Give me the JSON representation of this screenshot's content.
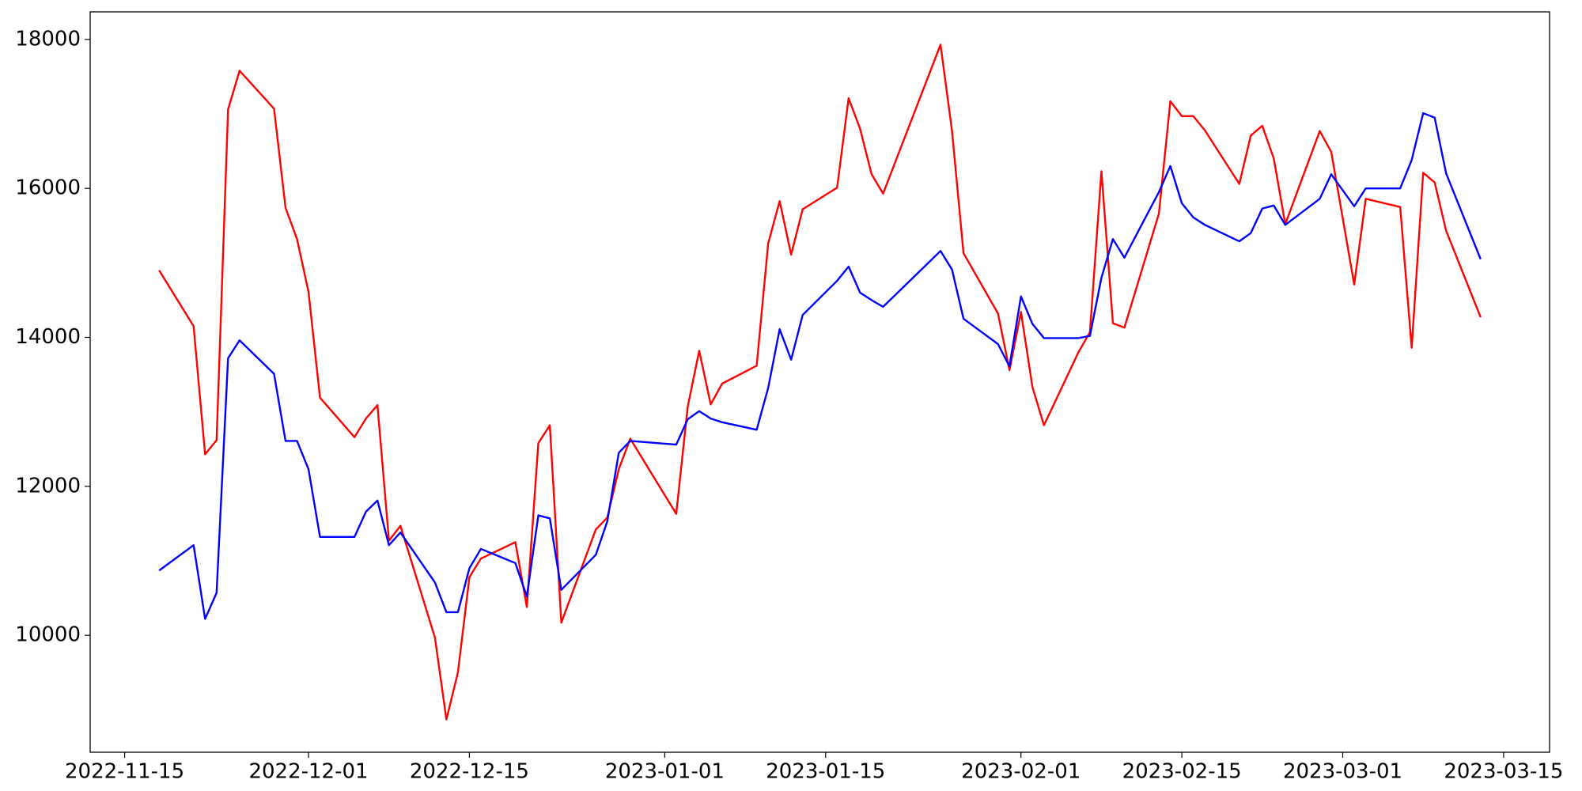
{
  "chart_data": {
    "type": "line",
    "x": [
      "2022-11-18",
      "2022-11-21",
      "2022-11-22",
      "2022-11-23",
      "2022-11-24",
      "2022-11-25",
      "2022-11-28",
      "2022-11-29",
      "2022-11-30",
      "2022-12-01",
      "2022-12-02",
      "2022-12-05",
      "2022-12-06",
      "2022-12-07",
      "2022-12-08",
      "2022-12-09",
      "2022-12-12",
      "2022-12-13",
      "2022-12-14",
      "2022-12-15",
      "2022-12-16",
      "2022-12-19",
      "2022-12-20",
      "2022-12-21",
      "2022-12-22",
      "2022-12-23",
      "2022-12-26",
      "2022-12-27",
      "2022-12-28",
      "2022-12-29",
      "2023-01-02",
      "2023-01-03",
      "2023-01-04",
      "2023-01-05",
      "2023-01-06",
      "2023-01-09",
      "2023-01-10",
      "2023-01-11",
      "2023-01-12",
      "2023-01-13",
      "2023-01-16",
      "2023-01-17",
      "2023-01-18",
      "2023-01-19",
      "2023-01-20",
      "2023-01-25",
      "2023-01-26",
      "2023-01-27",
      "2023-01-30",
      "2023-01-31",
      "2023-02-01",
      "2023-02-02",
      "2023-02-03",
      "2023-02-06",
      "2023-02-07",
      "2023-02-08",
      "2023-02-09",
      "2023-02-10",
      "2023-02-13",
      "2023-02-14",
      "2023-02-15",
      "2023-02-16",
      "2023-02-17",
      "2023-02-20",
      "2023-02-21",
      "2023-02-22",
      "2023-02-23",
      "2023-02-24",
      "2023-02-27",
      "2023-02-28",
      "2023-03-02",
      "2023-03-03",
      "2023-03-06",
      "2023-03-07",
      "2023-03-08",
      "2023-03-09",
      "2023-03-10",
      "2023-03-13"
    ],
    "series": [
      {
        "color": "#ff0000",
        "values": [
          14900,
          14150,
          12430,
          12620,
          17060,
          17580,
          17070,
          15740,
          15320,
          14610,
          13190,
          12660,
          12910,
          13090,
          11270,
          11470,
          9970,
          8870,
          9500,
          10780,
          11030,
          11250,
          10380,
          12580,
          12820,
          10170,
          11420,
          11580,
          12230,
          12640,
          11630,
          13070,
          13820,
          13100,
          13380,
          13620,
          15260,
          15830,
          15110,
          15720,
          16010,
          17210,
          16800,
          16190,
          15930,
          17930,
          16770,
          15130,
          14320,
          13560,
          14340,
          13330,
          12820,
          13800,
          14070,
          16230,
          14190,
          14130,
          15660,
          17170,
          16970,
          16970,
          16780,
          16060,
          16710,
          16840,
          16400,
          15520,
          16770,
          16490,
          14710,
          15860,
          15750,
          13860,
          16210,
          16080,
          15430,
          14270
        ]
      },
      {
        "color": "#0000ff",
        "values": [
          10870,
          11210,
          10220,
          10570,
          13720,
          13960,
          13510,
          12610,
          12610,
          12230,
          11320,
          11320,
          11660,
          11810,
          11210,
          11380,
          10710,
          10310,
          10310,
          10900,
          11160,
          10970,
          10520,
          11610,
          11570,
          10610,
          11080,
          11530,
          12450,
          12610,
          12560,
          12900,
          13010,
          12910,
          12860,
          12760,
          13320,
          14110,
          13700,
          14300,
          14760,
          14950,
          14600,
          14500,
          14410,
          15160,
          14910,
          14250,
          13910,
          13610,
          14550,
          14180,
          13990,
          13990,
          14020,
          14800,
          15320,
          15070,
          15950,
          16300,
          15800,
          15610,
          15510,
          15290,
          15400,
          15730,
          15770,
          15510,
          15860,
          16190,
          15760,
          16000,
          16000,
          16380,
          17010,
          16950,
          16200,
          15050
        ]
      }
    ],
    "xlim": [
      "2022-11-12",
      "2023-03-19"
    ],
    "xticks": [
      "2022-11-15",
      "2022-12-01",
      "2022-12-15",
      "2023-01-01",
      "2023-01-15",
      "2023-02-01",
      "2023-02-15",
      "2023-03-01",
      "2023-03-15"
    ],
    "ylim": [
      8430,
      18370
    ],
    "yticks": [
      10000,
      12000,
      14000,
      16000,
      18000
    ]
  }
}
